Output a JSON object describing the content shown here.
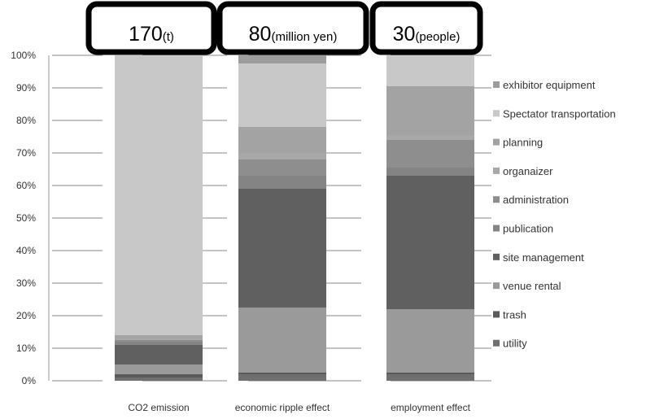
{
  "chart_data": {
    "type": "bar",
    "stacked": true,
    "categories": [
      "CO2 emission",
      "economic ripple effect",
      "employment effect"
    ],
    "yticks": [
      "0%",
      "10%",
      "20%",
      "30%",
      "40%",
      "50%",
      "60%",
      "70%",
      "80%",
      "90%",
      "100%"
    ],
    "ylim": [
      0,
      100
    ],
    "grid": true,
    "legend_position": "right",
    "totals": [
      {
        "value": "170",
        "unit": "(t)"
      },
      {
        "value": "80",
        "unit": "(million yen)"
      },
      {
        "value": "30",
        "unit": "(people)"
      }
    ],
    "series": [
      {
        "name": "utility",
        "color": "#6f6f6f",
        "values": [
          1,
          2,
          2
        ]
      },
      {
        "name": "trash",
        "color": "#5a5a5a",
        "values": [
          1,
          0.5,
          0.5
        ]
      },
      {
        "name": "venue rental",
        "color": "#9a9a9a",
        "values": [
          3,
          20,
          19.5
        ]
      },
      {
        "name": "site management",
        "color": "#606060",
        "values": [
          6,
          36.5,
          41
        ]
      },
      {
        "name": "publication",
        "color": "#848484",
        "values": [
          1,
          4,
          2.5
        ]
      },
      {
        "name": "administration",
        "color": "#8e8e8e",
        "values": [
          0.5,
          5,
          8.5
        ]
      },
      {
        "name": "organaizer",
        "color": "#a8a8a8",
        "values": [
          0.5,
          2,
          1.5
        ]
      },
      {
        "name": "planning",
        "color": "#a3a3a3",
        "values": [
          1,
          8,
          15
        ]
      },
      {
        "name": "Spectator transportation",
        "color": "#c8c8c8",
        "values": [
          86,
          19.5,
          9.5
        ]
      },
      {
        "name": "exhibitor equipment",
        "color": "#9c9c9c",
        "values": [
          0,
          2.5,
          0
        ]
      }
    ]
  }
}
